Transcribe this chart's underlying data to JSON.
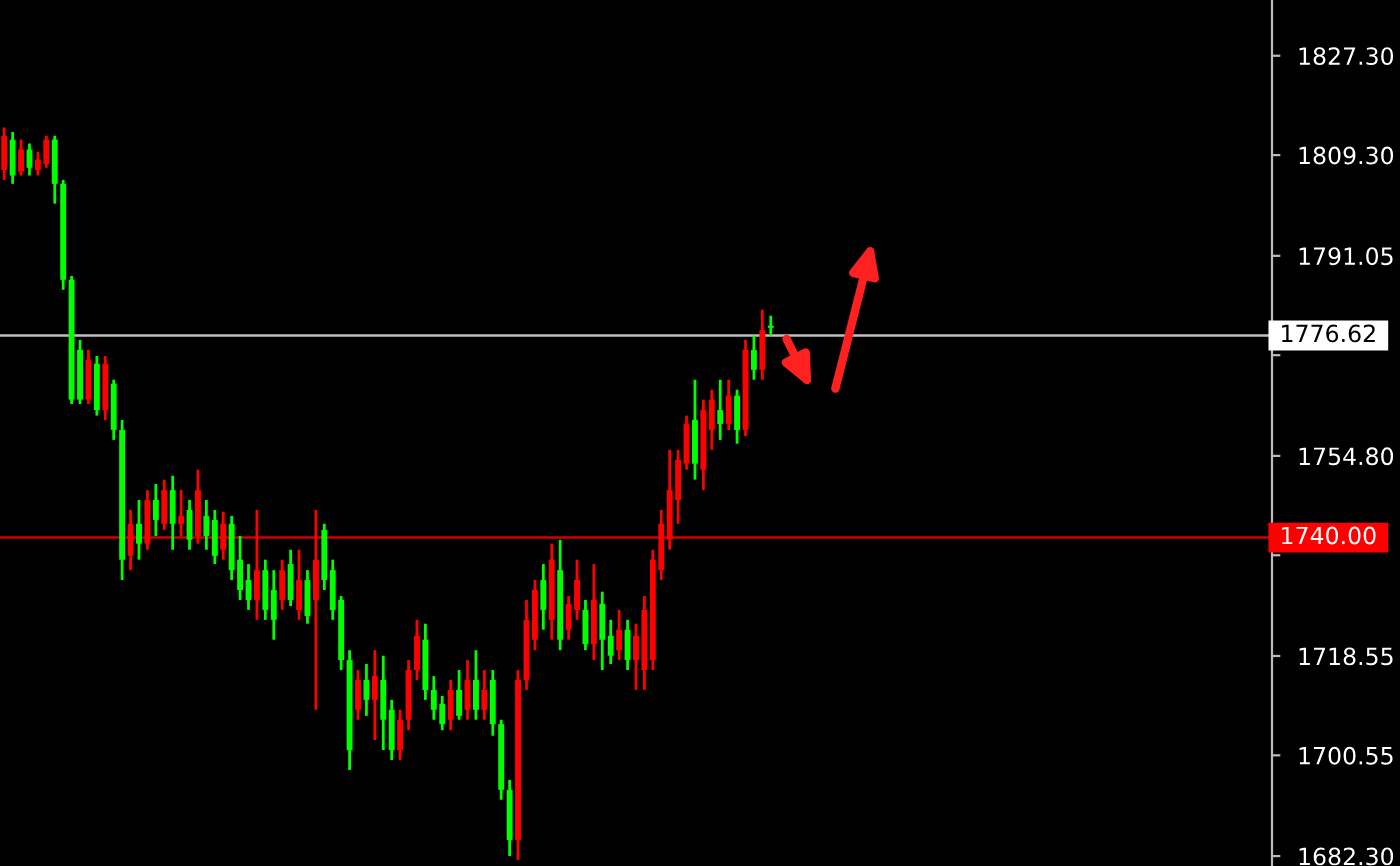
{
  "chart_data": {
    "type": "candlestick",
    "categories": [
      null,
      null,
      null,
      null,
      null,
      null,
      null,
      null,
      null,
      null,
      null,
      null,
      null,
      null,
      null,
      null,
      null,
      null,
      null,
      null,
      null,
      null,
      null,
      null,
      null,
      null,
      null,
      null,
      null,
      null,
      null,
      null,
      null,
      null,
      null,
      null,
      null,
      null,
      null,
      null,
      null,
      null,
      null,
      null,
      null,
      null,
      null,
      null,
      null,
      null,
      null,
      null,
      null,
      null,
      null,
      null,
      null,
      null,
      null,
      null,
      null,
      null,
      null,
      null,
      null,
      null,
      null,
      null,
      null,
      null,
      null,
      null,
      null,
      null,
      null,
      null,
      null,
      null,
      null,
      null,
      null,
      null,
      null,
      null,
      null,
      null,
      null,
      null,
      null,
      null,
      null,
      null,
      null,
      null,
      null,
      null,
      null,
      null,
      null,
      null,
      null,
      null,
      null,
      null,
      null,
      null,
      null,
      null,
      null,
      null,
      null,
      null,
      null,
      null,
      null,
      null,
      null,
      null,
      null,
      null,
      null,
      null,
      null,
      null,
      null,
      null,
      null,
      null,
      null,
      null,
      null,
      null,
      null,
      null,
      null,
      null,
      null,
      null,
      null,
      null,
      null,
      null,
      null,
      null,
      null,
      null,
      null,
      null,
      null,
      null,
      null
    ],
    "ohlc": [
      [
        1806.6,
        1814.3,
        1804.8,
        1812.8
      ],
      [
        1812.1,
        1813.5,
        1804.1,
        1805.6
      ],
      [
        1806.3,
        1812.1,
        1805.6,
        1810.3
      ],
      [
        1810.3,
        1811.4,
        1805.6,
        1807.0
      ],
      [
        1806.6,
        1809.9,
        1805.6,
        1808.5
      ],
      [
        1807.7,
        1812.8,
        1807.0,
        1812.1
      ],
      [
        1812.1,
        1812.8,
        1800.5,
        1804.1
      ],
      [
        1804.1,
        1804.8,
        1784.9,
        1786.7
      ],
      [
        1786.7,
        1787.4,
        1764.2,
        1765.0
      ],
      [
        1774.0,
        1775.8,
        1764.2,
        1765.0
      ],
      [
        1765.0,
        1774.0,
        1764.2,
        1772.2
      ],
      [
        1771.5,
        1772.9,
        1762.1,
        1763.1
      ],
      [
        1763.1,
        1772.9,
        1761.3,
        1771.5
      ],
      [
        1767.9,
        1768.6,
        1757.7,
        1759.5
      ],
      [
        1759.5,
        1761.3,
        1732.3,
        1736.0
      ],
      [
        1736.7,
        1745.0,
        1734.1,
        1742.5
      ],
      [
        1742.5,
        1746.8,
        1736.0,
        1738.9
      ],
      [
        1738.9,
        1748.6,
        1737.8,
        1746.8
      ],
      [
        1746.8,
        1749.7,
        1740.3,
        1743.2
      ],
      [
        1742.5,
        1750.5,
        1741.4,
        1748.6
      ],
      [
        1748.6,
        1751.2,
        1737.8,
        1742.5
      ],
      [
        1742.5,
        1748.6,
        1740.3,
        1743.9
      ],
      [
        1745.0,
        1746.8,
        1737.8,
        1739.6
      ],
      [
        1740.3,
        1752.3,
        1738.9,
        1748.6
      ],
      [
        1743.9,
        1746.8,
        1737.8,
        1740.3
      ],
      [
        1743.2,
        1745.0,
        1735.2,
        1736.7
      ],
      [
        1737.8,
        1744.7,
        1736.0,
        1742.5
      ],
      [
        1742.5,
        1743.9,
        1732.3,
        1734.1
      ],
      [
        1736.0,
        1740.3,
        1728.7,
        1730.5
      ],
      [
        1732.3,
        1735.2,
        1726.9,
        1728.7
      ],
      [
        1728.7,
        1745.0,
        1725.1,
        1734.1
      ],
      [
        1734.1,
        1736.0,
        1725.1,
        1726.9
      ],
      [
        1730.5,
        1734.1,
        1721.5,
        1725.1
      ],
      [
        1728.7,
        1736.0,
        1726.9,
        1734.1
      ],
      [
        1735.2,
        1737.8,
        1727.6,
        1728.7
      ],
      [
        1726.9,
        1737.8,
        1725.1,
        1732.3
      ],
      [
        1732.3,
        1734.1,
        1724.4,
        1725.8
      ],
      [
        1728.7,
        1745.0,
        1708.8,
        1736.0
      ],
      [
        1741.4,
        1742.5,
        1730.5,
        1732.3
      ],
      [
        1734.1,
        1736.0,
        1725.1,
        1726.9
      ],
      [
        1728.7,
        1729.4,
        1716.0,
        1717.8
      ],
      [
        1717.8,
        1719.6,
        1697.9,
        1701.5
      ],
      [
        1708.8,
        1716.0,
        1707.0,
        1714.2
      ],
      [
        1714.2,
        1717.1,
        1707.7,
        1710.6
      ],
      [
        1710.6,
        1719.6,
        1703.3,
        1714.9
      ],
      [
        1714.2,
        1718.6,
        1701.5,
        1707.0
      ],
      [
        1708.8,
        1710.6,
        1699.7,
        1701.5
      ],
      [
        1701.5,
        1708.8,
        1699.7,
        1707.0
      ],
      [
        1707.0,
        1717.8,
        1705.1,
        1716.0
      ],
      [
        1716.0,
        1725.1,
        1714.2,
        1722.2
      ],
      [
        1721.5,
        1724.4,
        1710.6,
        1712.4
      ],
      [
        1712.4,
        1714.9,
        1707.0,
        1708.8
      ],
      [
        1709.9,
        1711.3,
        1705.1,
        1706.2
      ],
      [
        1707.0,
        1714.2,
        1705.1,
        1712.4
      ],
      [
        1712.4,
        1716.0,
        1707.0,
        1707.7
      ],
      [
        1708.8,
        1717.8,
        1707.0,
        1714.2
      ],
      [
        1714.2,
        1719.6,
        1707.0,
        1708.8
      ],
      [
        1708.8,
        1716.0,
        1707.0,
        1712.4
      ],
      [
        1714.2,
        1716.0,
        1704.1,
        1706.2
      ],
      [
        1706.2,
        1707.0,
        1692.5,
        1694.3
      ],
      [
        1694.3,
        1696.1,
        1682.3,
        1685.2
      ],
      [
        1685.2,
        1716.0,
        1681.6,
        1714.2
      ],
      [
        1714.2,
        1728.7,
        1712.4,
        1725.1
      ],
      [
        1721.5,
        1732.3,
        1719.6,
        1730.5
      ],
      [
        1732.3,
        1735.2,
        1723.3,
        1726.9
      ],
      [
        1725.1,
        1738.9,
        1721.5,
        1736.0
      ],
      [
        1734.1,
        1739.6,
        1719.6,
        1721.5
      ],
      [
        1723.3,
        1729.4,
        1721.5,
        1728.0
      ],
      [
        1726.9,
        1736.0,
        1725.1,
        1732.3
      ],
      [
        1726.9,
        1728.7,
        1719.6,
        1720.7
      ],
      [
        1720.7,
        1735.2,
        1717.8,
        1728.7
      ],
      [
        1728.0,
        1730.2,
        1716.0,
        1721.5
      ],
      [
        1722.2,
        1725.1,
        1717.1,
        1718.6
      ],
      [
        1719.6,
        1726.9,
        1717.8,
        1723.3
      ],
      [
        1723.3,
        1725.1,
        1716.0,
        1717.8
      ],
      [
        1717.8,
        1724.4,
        1712.4,
        1722.2
      ],
      [
        1716.0,
        1729.4,
        1712.4,
        1726.9
      ],
      [
        1717.8,
        1737.8,
        1716.0,
        1736.0
      ],
      [
        1734.1,
        1745.0,
        1732.3,
        1742.5
      ],
      [
        1739.6,
        1755.9,
        1737.8,
        1748.6
      ],
      [
        1746.8,
        1755.9,
        1742.5,
        1754.1
      ],
      [
        1753.4,
        1762.1,
        1752.3,
        1760.6
      ],
      [
        1761.3,
        1768.6,
        1750.5,
        1753.4
      ],
      [
        1752.3,
        1765.0,
        1748.6,
        1763.1
      ],
      [
        1759.5,
        1766.8,
        1755.9,
        1765.0
      ],
      [
        1763.1,
        1768.6,
        1757.7,
        1760.6
      ],
      [
        1760.6,
        1768.6,
        1759.5,
        1765.7
      ],
      [
        1765.7,
        1766.8,
        1757.0,
        1759.5
      ],
      [
        1759.5,
        1775.8,
        1758.4,
        1774.0
      ],
      [
        1774.0,
        1776.6,
        1768.6,
        1770.4
      ],
      [
        1770.4,
        1781.3,
        1768.6,
        1777.6
      ],
      [
        1778.4,
        1780.2,
        1776.6,
        1778.0
      ],
      null,
      null,
      null,
      null,
      null,
      null,
      null,
      null,
      null,
      null,
      null,
      null,
      null,
      null,
      null,
      null,
      null,
      null,
      null,
      null,
      null,
      null,
      null,
      null,
      null,
      null,
      null,
      null,
      null,
      null,
      null,
      null,
      null,
      null,
      null,
      null,
      null,
      null,
      null,
      null,
      null,
      null,
      null,
      null,
      null,
      null,
      null,
      null,
      null,
      null,
      null,
      null,
      null,
      null,
      null,
      null,
      null,
      null,
      null
    ],
    "colors": [
      "#ff0000",
      "#00ff00",
      "#ff0000",
      "#00ff00",
      "#ff0000",
      "#ff0000",
      "#00ff00",
      "#00ff00",
      "#00ff00",
      "#00ff00",
      "#ff0000",
      "#00ff00",
      "#ff0000",
      "#00ff00",
      "#00ff00",
      "#ff0000",
      "#00ff00",
      "#ff0000",
      "#00ff00",
      "#ff0000",
      "#00ff00",
      "#ff0000",
      "#00ff00",
      "#ff0000",
      "#00ff00",
      "#00ff00",
      "#ff0000",
      "#00ff00",
      "#00ff00",
      "#00ff00",
      "#ff0000",
      "#00ff00",
      "#00ff00",
      "#ff0000",
      "#00ff00",
      "#ff0000",
      "#00ff00",
      "#ff0000",
      "#00ff00",
      "#00ff00",
      "#00ff00",
      "#00ff00",
      "#ff0000",
      "#00ff00",
      "#ff0000",
      "#00ff00",
      "#00ff00",
      "#ff0000",
      "#ff0000",
      "#ff0000",
      "#00ff00",
      "#00ff00",
      "#00ff00",
      "#ff0000",
      "#00ff00",
      "#ff0000",
      "#00ff00",
      "#ff0000",
      "#00ff00",
      "#00ff00",
      "#00ff00",
      "#ff0000",
      "#ff0000",
      "#ff0000",
      "#00ff00",
      "#ff0000",
      "#00ff00",
      "#ff0000",
      "#ff0000",
      "#00ff00",
      "#ff0000",
      "#00ff00",
      "#00ff00",
      "#ff0000",
      "#00ff00",
      "#ff0000",
      "#ff0000",
      "#ff0000",
      "#ff0000",
      "#ff0000",
      "#ff0000",
      "#ff0000",
      "#00ff00",
      "#ff0000",
      "#ff0000",
      "#00ff00",
      "#ff0000",
      "#00ff00",
      "#ff0000",
      "#00ff00",
      "#ff0000",
      "#00ff00",
      null,
      null,
      null,
      null,
      null,
      null,
      null,
      null,
      null,
      null,
      null,
      null,
      null,
      null,
      null,
      null,
      null,
      null,
      null,
      null,
      null,
      null,
      null,
      null,
      null,
      null,
      null,
      null,
      null,
      null,
      null,
      null,
      null,
      null,
      null,
      null,
      null,
      null,
      null,
      null,
      null,
      null,
      null,
      null,
      null,
      null,
      null,
      null,
      null,
      null,
      null,
      null,
      null,
      null,
      null,
      null,
      null,
      null,
      null
    ],
    "ylim": [
      1680.5,
      1837.4
    ],
    "yticks": [
      {
        "value": 1827.3,
        "label": "1827.30"
      },
      {
        "value": 1809.3,
        "label": "1809.30"
      },
      {
        "value": 1791.05,
        "label": "1791.05"
      },
      {
        "value": 1773.05,
        "label": null
      },
      {
        "value": 1754.8,
        "label": "1754.80"
      },
      {
        "value": 1736.8,
        "label": null
      },
      {
        "value": 1718.55,
        "label": "1718.55"
      },
      {
        "value": 1700.55,
        "label": "1700.55"
      },
      {
        "value": 1682.3,
        "label": "1682.30"
      }
    ],
    "ref_lines": [
      {
        "axis": "y",
        "value": 1776.62,
        "label": "1776.62",
        "color": "#c0c0c0"
      },
      {
        "axis": "y",
        "value": 1740.0,
        "label": "1740.00",
        "color": "#d00000"
      }
    ],
    "grid": false
  }
}
